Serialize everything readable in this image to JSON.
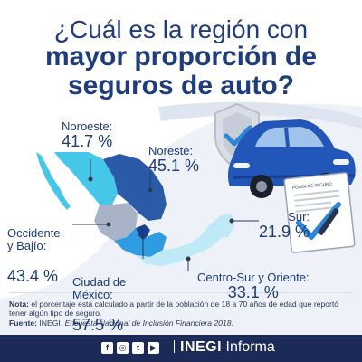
{
  "title": {
    "line1": "¿Cuál es la región con",
    "line2": "mayor proporción de",
    "line3": "seguros de auto?"
  },
  "regions": [
    {
      "id": "noroeste",
      "name": "Noroeste:",
      "value": "41.7 %"
    },
    {
      "id": "noreste",
      "name": "Noreste:",
      "value": "45.1 %"
    },
    {
      "id": "occidente",
      "name": "Occidente\ny Bajío:",
      "value": "43.4 %"
    },
    {
      "id": "sur",
      "name": "Sur:",
      "value": "21.9 %"
    },
    {
      "id": "cdmx",
      "name": "Ciudad de\nMéxico:",
      "value": "57.5 %"
    },
    {
      "id": "centrosur",
      "name": "Centro-Sur y Oriente:",
      "value": "33.1 %"
    }
  ],
  "policy_doc_label": "PÓLIZA DE SEGURO",
  "note": {
    "note_label": "Nota:",
    "note_text": " el porcentaje está calculado a partir de la población de 18 a 70 años de edad que reportó tener algún tipo de seguro.",
    "source_label": "Fuente:",
    "source_text": " INEGI. ",
    "source_title": "Encuesta Nacional de Inclusión Financiera 2018."
  },
  "footer": {
    "social": [
      {
        "name": "facebook-icon",
        "glyph": "f"
      },
      {
        "name": "instagram-icon",
        "glyph": "◎"
      },
      {
        "name": "twitter-icon",
        "glyph": "t"
      },
      {
        "name": "youtube-icon",
        "glyph": "▶"
      }
    ],
    "brand": "INEGI",
    "brand_suffix": "Informa"
  },
  "colors": {
    "title": "#1f3d7a",
    "noroeste": "#44c7e8",
    "noreste": "#2a5aa8",
    "occidente": "#a9b3c7",
    "cdmx": "#1a3e8f",
    "centrosur": "#2f9be0",
    "sur": "#bfe9f7",
    "footer": "#1b2a56"
  }
}
